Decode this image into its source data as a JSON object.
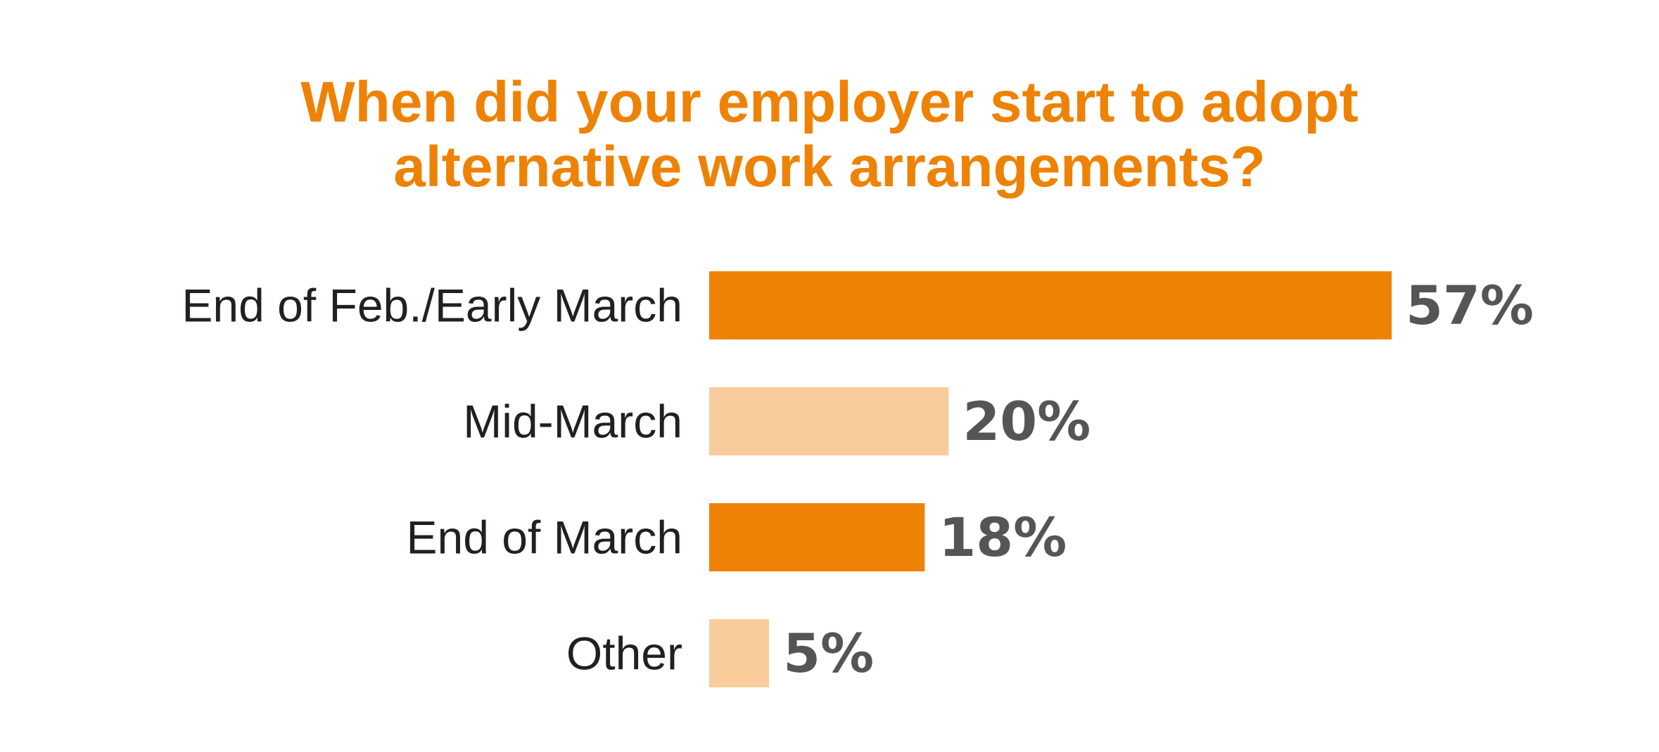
{
  "colors": {
    "title": "#ee8205",
    "bar_dark": "#ee8205",
    "bar_light": "#f8cd9b",
    "category_text": "#231f20",
    "value_text": "#555555"
  },
  "chart_data": {
    "type": "bar",
    "orientation": "horizontal",
    "title_lines": [
      "When did your employer start to adopt",
      "alternative work arrangements?"
    ],
    "categories": [
      "End of Feb./Early March",
      "Mid-March",
      "End of March",
      "Other"
    ],
    "values": [
      57,
      20,
      18,
      5
    ],
    "value_labels": [
      "57%",
      "20%",
      "18%",
      "5%"
    ],
    "bar_color_keys": [
      "bar_dark",
      "bar_light",
      "bar_dark",
      "bar_light"
    ],
    "xlim": [
      0,
      57
    ],
    "grid": false,
    "legend": false
  }
}
